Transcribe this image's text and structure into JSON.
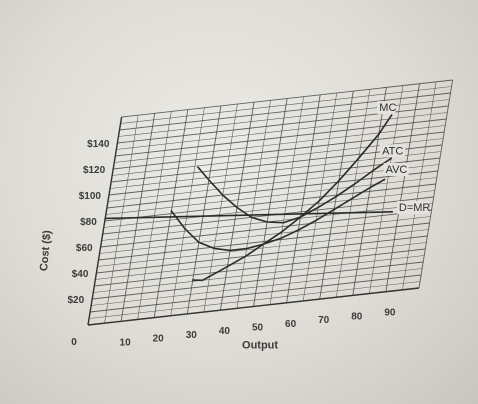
{
  "chart_data": {
    "type": "line",
    "xlabel": "Output",
    "ylabel": "Cost ($)",
    "xlim": [
      0,
      100
    ],
    "ylim": [
      0,
      160
    ],
    "grid": true,
    "x_ticks": [
      {
        "value": 0,
        "label": "0"
      },
      {
        "value": 10,
        "label": "10"
      },
      {
        "value": 20,
        "label": "20"
      },
      {
        "value": 30,
        "label": "30"
      },
      {
        "value": 40,
        "label": "40"
      },
      {
        "value": 50,
        "label": "50"
      },
      {
        "value": 60,
        "label": "60"
      },
      {
        "value": 70,
        "label": "70"
      },
      {
        "value": 80,
        "label": "80"
      },
      {
        "value": 90,
        "label": "90"
      }
    ],
    "y_ticks": [
      {
        "value": 20,
        "label": "$20"
      },
      {
        "value": 40,
        "label": "$40"
      },
      {
        "value": 60,
        "label": "$60"
      },
      {
        "value": 80,
        "label": "$80"
      },
      {
        "value": 100,
        "label": "$100"
      },
      {
        "value": 120,
        "label": "$120"
      },
      {
        "value": 140,
        "label": "$140"
      }
    ],
    "series": [
      {
        "name": "MC",
        "x": [
          30,
          33,
          38,
          45,
          50,
          55,
          60,
          65,
          70,
          75,
          80,
          83
        ],
        "y": [
          26,
          25,
          31,
          40,
          48,
          56,
          66,
          77,
          91,
          107,
          124,
          138
        ]
      },
      {
        "name": "ATC",
        "x": [
          26,
          30,
          35,
          40,
          45,
          50,
          55,
          60,
          65,
          70,
          75,
          80,
          85
        ],
        "y": [
          114,
          103,
          90,
          79,
          70,
          65,
          63,
          66,
          72,
          79,
          87,
          96,
          104
        ]
      },
      {
        "name": "AVC",
        "x": [
          20,
          25,
          30,
          35,
          40,
          45,
          50,
          55,
          60,
          65,
          70,
          75,
          80,
          84
        ],
        "y": [
          82,
          67,
          55,
          49,
          46,
          46,
          48,
          51,
          56,
          62,
          69,
          76,
          83,
          88
        ]
      },
      {
        "name": "D=MR",
        "x": [
          0,
          88
        ],
        "y": [
          82,
          62
        ]
      }
    ],
    "annotations": [
      {
        "text": "MC",
        "x": 79,
        "y": 142
      },
      {
        "text": "ATC",
        "x": 82,
        "y": 108
      },
      {
        "text": "AVC",
        "x": 84,
        "y": 93
      },
      {
        "text": "D=MR",
        "x": 90,
        "y": 62
      }
    ]
  }
}
